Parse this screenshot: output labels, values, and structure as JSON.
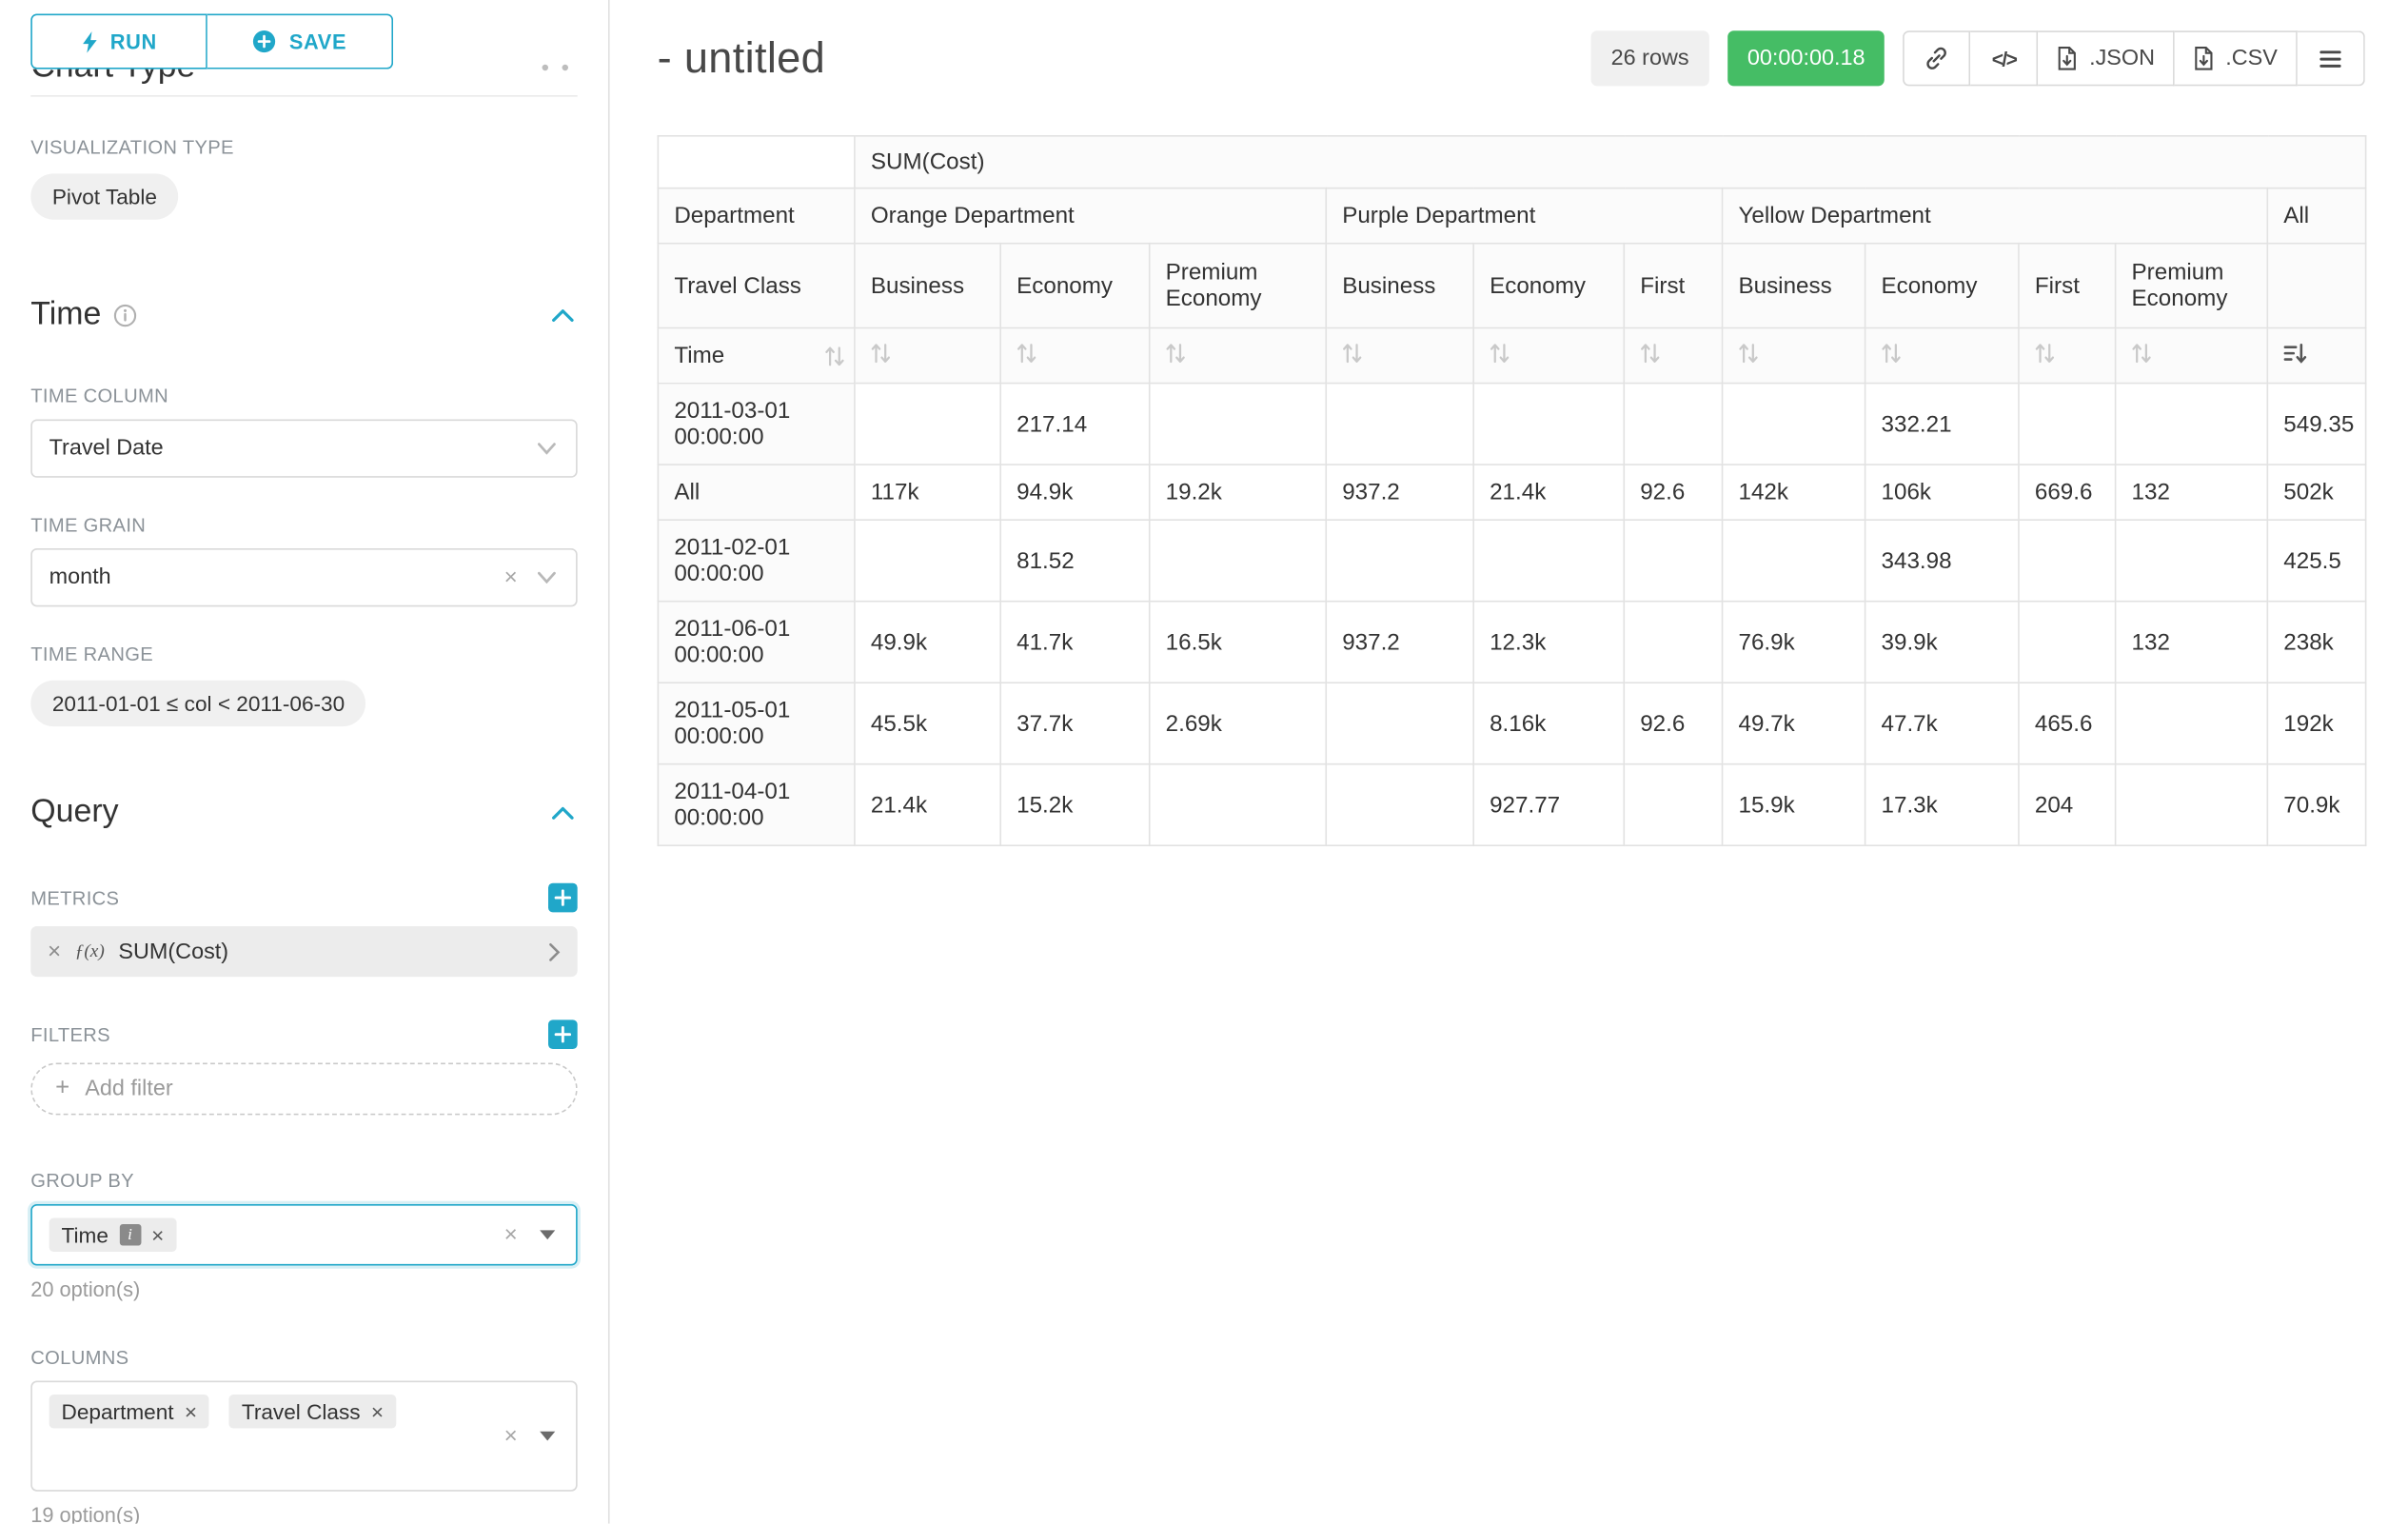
{
  "colors": {
    "primary": "#20a7c9",
    "timer_green": "#45bd65"
  },
  "sidebar": {
    "run_label": "RUN",
    "save_label": "SAVE",
    "chart_type_heading": "Chart Type",
    "visualization": {
      "label": "VISUALIZATION TYPE",
      "value": "Pivot Table"
    },
    "time": {
      "title": "Time",
      "time_column": {
        "label": "TIME COLUMN",
        "value": "Travel Date"
      },
      "time_grain": {
        "label": "TIME GRAIN",
        "value": "month"
      },
      "time_range": {
        "label": "TIME RANGE",
        "value": "2011-01-01 ≤ col < 2011-06-30"
      }
    },
    "query": {
      "title": "Query",
      "metrics": {
        "label": "METRICS",
        "items": [
          {
            "prefix": "ƒ(x)",
            "name": "SUM(Cost)"
          }
        ]
      },
      "filters": {
        "label": "FILTERS",
        "placeholder": "Add filter"
      },
      "group_by": {
        "label": "GROUP BY",
        "tags": [
          "Time"
        ],
        "hint": "20 option(s)"
      },
      "columns": {
        "label": "COLUMNS",
        "tags": [
          "Department",
          "Travel Class"
        ],
        "hint": "19 option(s)"
      }
    }
  },
  "header": {
    "title": "- untitled",
    "row_count_badge": "26 rows",
    "timer_badge": "00:00:00.18",
    "json_label": ".JSON",
    "csv_label": ".CSV"
  },
  "table": {
    "metric_header": "SUM(Cost)",
    "row_dimension_labels": {
      "department": "Department",
      "travel_class": "Travel Class",
      "time": "Time"
    },
    "column_groups": [
      {
        "label": "Orange Department",
        "children": [
          "Business",
          "Economy",
          "Premium Economy"
        ]
      },
      {
        "label": "Purple Department",
        "children": [
          "Business",
          "Economy",
          "First"
        ]
      },
      {
        "label": "Yellow Department",
        "children": [
          "Business",
          "Economy",
          "First",
          "Premium Economy"
        ]
      },
      {
        "label": "All",
        "children": [
          ""
        ]
      }
    ],
    "rows": [
      {
        "label": "2011-03-01 00:00:00",
        "values": [
          "",
          "217.14",
          "",
          "",
          "",
          "",
          "",
          "332.21",
          "",
          "",
          "549.35"
        ]
      },
      {
        "label": "All",
        "values": [
          "117k",
          "94.9k",
          "19.2k",
          "937.2",
          "21.4k",
          "92.6",
          "142k",
          "106k",
          "669.6",
          "132",
          "502k"
        ]
      },
      {
        "label": "2011-02-01 00:00:00",
        "values": [
          "",
          "81.52",
          "",
          "",
          "",
          "",
          "",
          "343.98",
          "",
          "",
          "425.5"
        ]
      },
      {
        "label": "2011-06-01 00:00:00",
        "values": [
          "49.9k",
          "41.7k",
          "16.5k",
          "937.2",
          "12.3k",
          "",
          "76.9k",
          "39.9k",
          "",
          "132",
          "238k"
        ]
      },
      {
        "label": "2011-05-01 00:00:00",
        "values": [
          "45.5k",
          "37.7k",
          "2.69k",
          "",
          "8.16k",
          "92.6",
          "49.7k",
          "47.7k",
          "465.6",
          "",
          "192k"
        ]
      },
      {
        "label": "2011-04-01 00:00:00",
        "values": [
          "21.4k",
          "15.2k",
          "",
          "",
          "927.77",
          "",
          "15.9k",
          "17.3k",
          "204",
          "",
          "70.9k"
        ]
      }
    ]
  }
}
